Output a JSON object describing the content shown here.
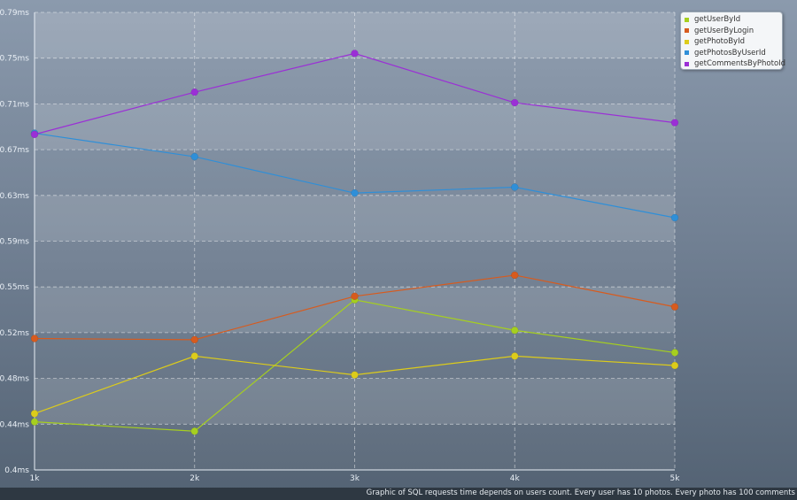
{
  "caption": "Graphic of SQL requests time depends on users count. Every user has 10 photos. Every photo has 100 comments",
  "chart_data": {
    "type": "line",
    "categories": [
      "1k",
      "2k",
      "3k",
      "4k",
      "5k"
    ],
    "y_ticks": [
      "0.4ms",
      "0.44ms",
      "0.48ms",
      "0.52ms",
      "0.55ms",
      "0.59ms",
      "0.63ms",
      "0.67ms",
      "0.71ms",
      "0.75ms",
      "0.79ms"
    ],
    "ylim": [
      0.4,
      0.79
    ],
    "grid": true,
    "legend_position": "top-right",
    "series": [
      {
        "name": "getUserById",
        "color": "#a6cf1f",
        "values": [
          0.441,
          0.433,
          0.545,
          0.519,
          0.5
        ]
      },
      {
        "name": "getUserByLogin",
        "color": "#d75b1e",
        "values": [
          0.512,
          0.511,
          0.548,
          0.566,
          0.539
        ]
      },
      {
        "name": "getPhotoById",
        "color": "#ddcc1a",
        "values": [
          0.448,
          0.497,
          0.481,
          0.497,
          0.489
        ]
      },
      {
        "name": "getPhotosByUserId",
        "color": "#2f8fd8",
        "values": [
          0.687,
          0.667,
          0.636,
          0.641,
          0.615
        ]
      },
      {
        "name": "getCommentsByPhotoId",
        "color": "#9b2fd6",
        "values": [
          0.686,
          0.722,
          0.755,
          0.713,
          0.696
        ]
      }
    ]
  }
}
